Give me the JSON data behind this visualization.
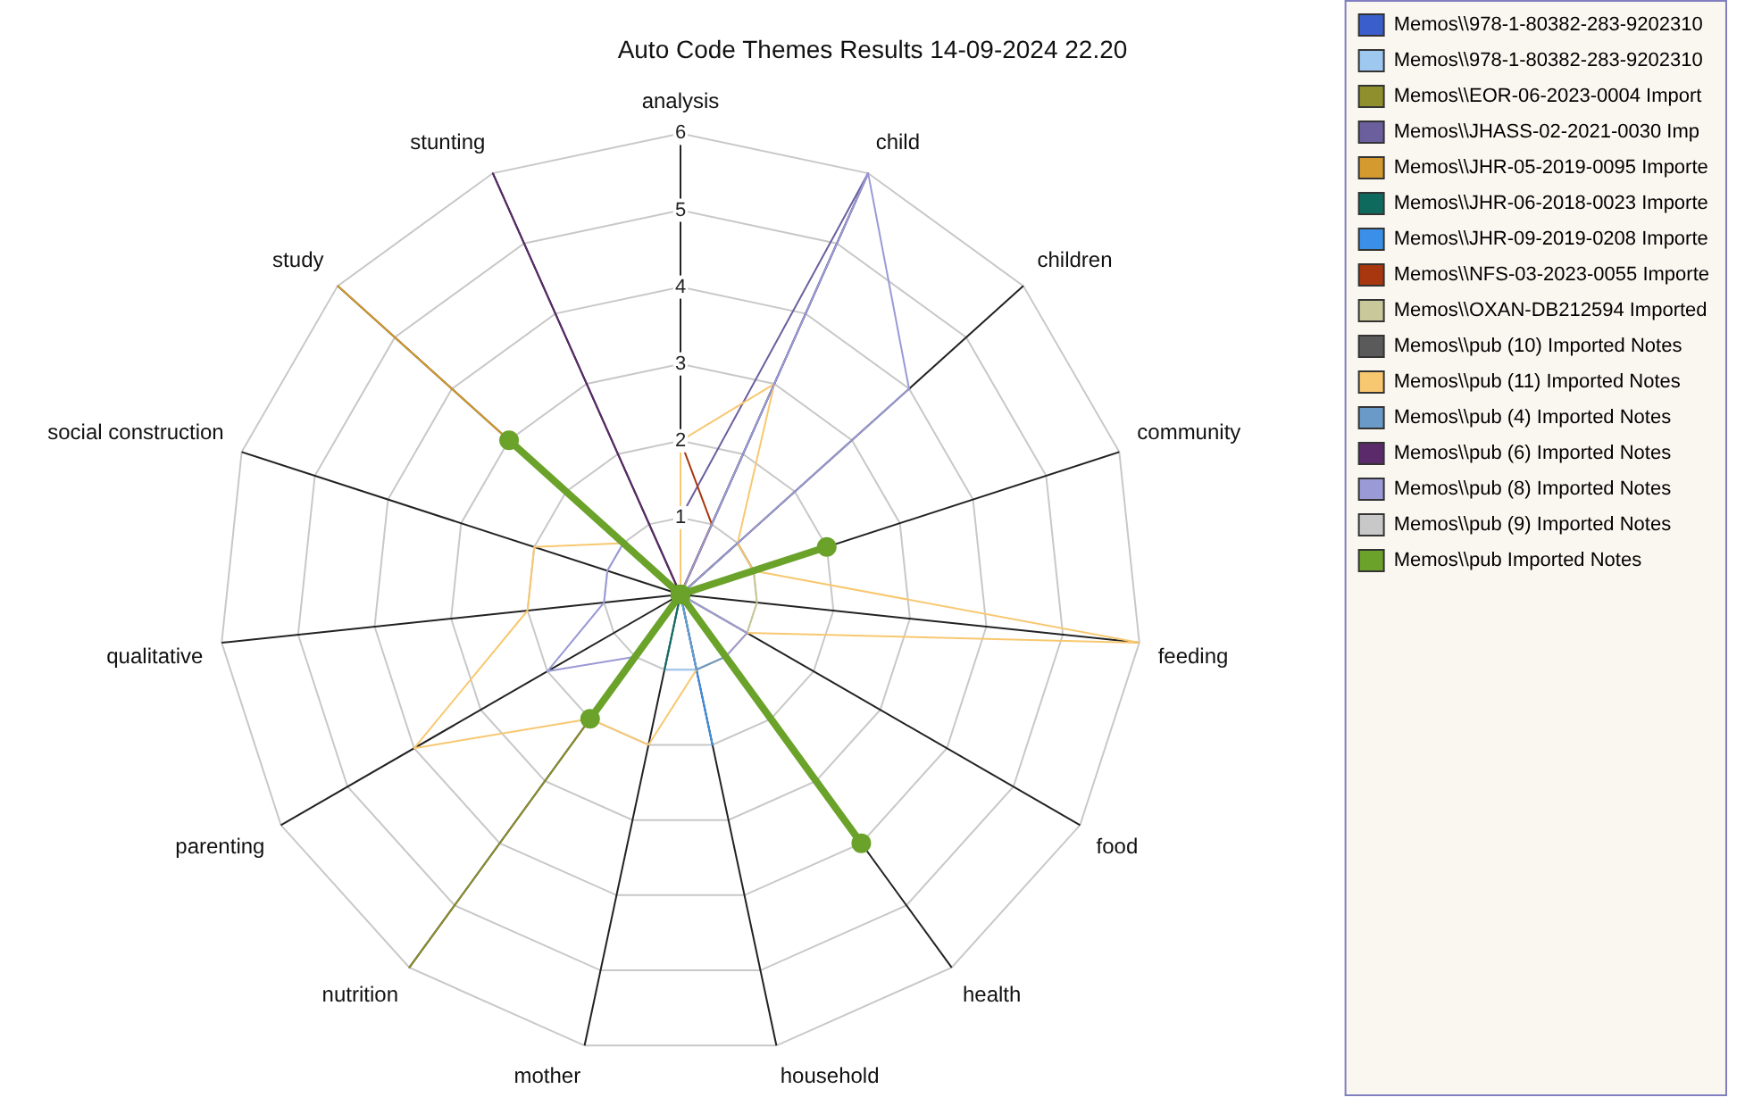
{
  "chart_data": {
    "type": "radar",
    "title": "Auto Code Themes Results 14-09-2024 22.20",
    "categories": [
      "analysis",
      "child",
      "children",
      "community",
      "feeding",
      "food",
      "health",
      "household",
      "mother",
      "nutrition",
      "parenting",
      "qualitative",
      "social construction",
      "study",
      "stunting"
    ],
    "ylim": [
      0,
      6
    ],
    "yticks": [
      1,
      2,
      3,
      4,
      5,
      6
    ],
    "grid": true,
    "legend": "right",
    "marker": "none",
    "series": [
      {
        "name": "Memos\\\\978-1-80382-283-9202310",
        "color": "#3a5fcd",
        "values": [
          0,
          0,
          0,
          0,
          0,
          0,
          0,
          1,
          0,
          0,
          0,
          0,
          0,
          0,
          0
        ]
      },
      {
        "name": "Memos\\\\978-1-80382-283-9202310",
        "color": "#9ec8f0",
        "values": [
          0,
          0,
          0,
          0,
          0,
          0,
          0,
          1,
          1,
          0,
          0,
          0,
          0,
          0,
          0
        ]
      },
      {
        "name": "Memos\\\\EOR-06-2023-0004 Import",
        "color": "#8f8f2e",
        "values": [
          0,
          2,
          0,
          0,
          0,
          0,
          0,
          0,
          0,
          6,
          0,
          0,
          0,
          0,
          0
        ]
      },
      {
        "name": "Memos\\\\JHASS-02-2021-0030 Imp",
        "color": "#6b5f9e",
        "values": [
          1,
          6,
          0,
          0,
          0,
          0,
          0,
          0,
          0,
          0,
          0,
          0,
          0,
          0,
          0
        ]
      },
      {
        "name": "Memos\\\\JHR-05-2019-0095 Importe",
        "color": "#d49a30",
        "values": [
          0,
          0,
          0,
          0,
          0,
          0,
          0,
          0,
          0,
          0,
          0,
          0,
          0,
          6,
          0
        ]
      },
      {
        "name": "Memos\\\\JHR-06-2018-0023 Importe",
        "color": "#0f6a5e",
        "values": [
          0,
          0,
          0,
          0,
          0,
          0,
          0,
          0,
          1,
          0,
          0,
          0,
          0,
          0,
          0
        ]
      },
      {
        "name": "Memos\\\\JHR-09-2019-0208 Importe",
        "color": "#3a90e8",
        "values": [
          0,
          0,
          0,
          0,
          0,
          0,
          0,
          2,
          0,
          0,
          0,
          0,
          0,
          0,
          0
        ]
      },
      {
        "name": "Memos\\\\NFS-03-2023-0055 Importe",
        "color": "#a8360e",
        "values": [
          2,
          1,
          0,
          0,
          0,
          0,
          0,
          0,
          0,
          0,
          0,
          0,
          0,
          0,
          0
        ]
      },
      {
        "name": "Memos\\\\OXAN-DB212594 Imported",
        "color": "#c8c89a",
        "values": [
          0,
          0,
          0,
          1,
          1,
          1,
          0,
          0,
          0,
          0,
          0,
          0,
          0,
          0,
          0
        ]
      },
      {
        "name": "Memos\\\\pub (10) Imported Notes",
        "color": "#5a5a5a",
        "values": [
          0,
          0,
          1,
          1,
          0,
          0,
          0,
          0,
          0,
          0,
          0,
          0,
          0,
          0,
          0
        ]
      },
      {
        "name": "Memos\\\\pub (11) Imported Notes",
        "color": "#f8c870",
        "values": [
          2,
          3,
          1,
          1,
          6,
          1,
          1,
          1,
          2,
          2,
          4,
          2,
          2,
          1,
          0
        ]
      },
      {
        "name": "Memos\\\\pub (4) Imported Notes",
        "color": "#6a9ac8",
        "values": [
          0,
          0,
          0,
          0,
          0,
          0,
          1,
          1,
          0,
          0,
          0,
          0,
          0,
          0,
          0
        ]
      },
      {
        "name": "Memos\\\\pub (6) Imported Notes",
        "color": "#5a2a6a",
        "values": [
          0,
          0,
          0,
          0,
          0,
          0,
          0,
          0,
          0,
          0,
          0,
          0,
          0,
          0,
          6
        ]
      },
      {
        "name": "Memos\\\\pub (8) Imported Notes",
        "color": "#9a9ad6",
        "values": [
          0,
          6,
          4,
          0,
          0,
          1,
          1,
          0,
          0,
          1,
          2,
          1,
          1,
          1,
          0
        ]
      },
      {
        "name": "Memos\\\\pub (9) Imported Notes",
        "color": "#c8c8c8",
        "values": [
          0,
          0,
          0,
          0,
          0,
          0,
          1,
          0,
          0,
          0,
          0,
          0,
          0,
          0,
          0
        ]
      },
      {
        "name": "Memos\\\\pub Imported Notes",
        "color": "#6aa22a",
        "marker": "circle",
        "values": [
          0,
          0,
          0,
          2,
          0,
          0,
          4,
          0,
          0,
          2,
          0,
          0,
          0,
          3,
          0
        ]
      }
    ]
  }
}
